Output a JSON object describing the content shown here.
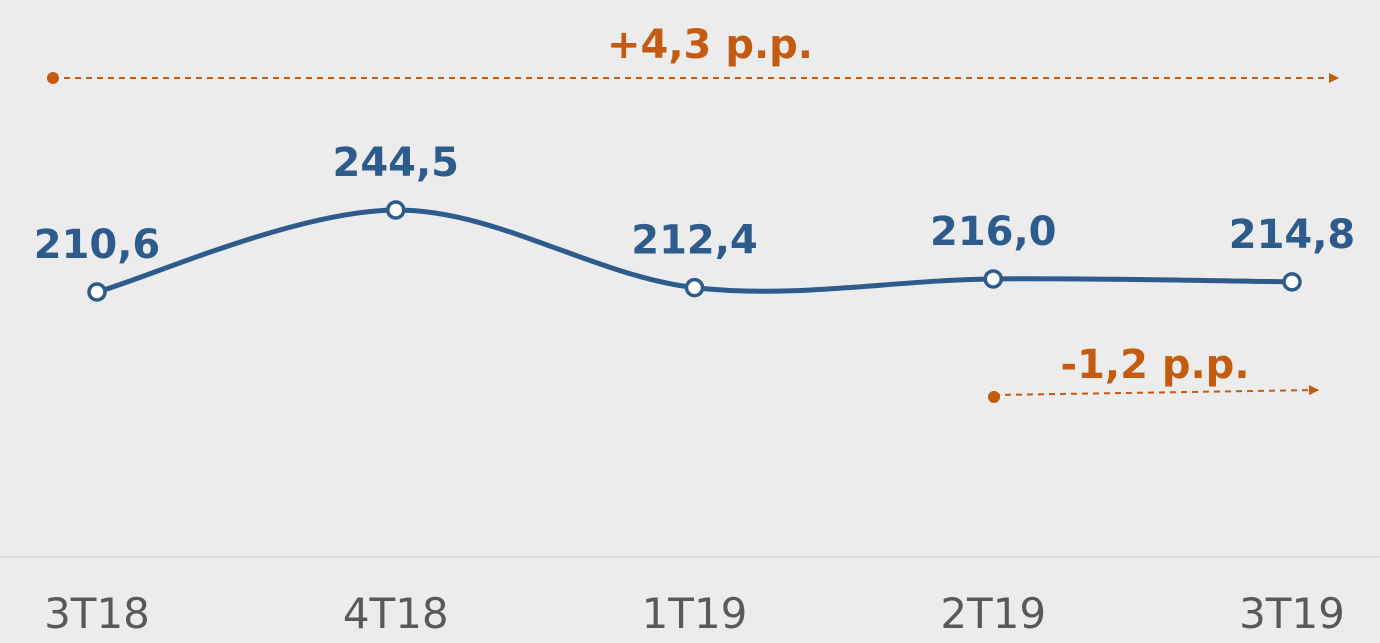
{
  "chart_data": {
    "type": "line",
    "categories": [
      "3T18",
      "4T18",
      "1T19",
      "2T19",
      "3T19"
    ],
    "series": [
      {
        "color": "#2d5b8c",
        "values": [
          210.6,
          244.5,
          212.4,
          216.0,
          214.8
        ],
        "value_labels": [
          "210,6",
          "244,5",
          "212,4",
          "216,0",
          "214,8"
        ]
      }
    ],
    "annotations": [
      {
        "text": "+4,3 p.p.",
        "color": "#c55a11"
      },
      {
        "text": "-1,2 p.p.",
        "color": "#c55a11"
      }
    ]
  }
}
